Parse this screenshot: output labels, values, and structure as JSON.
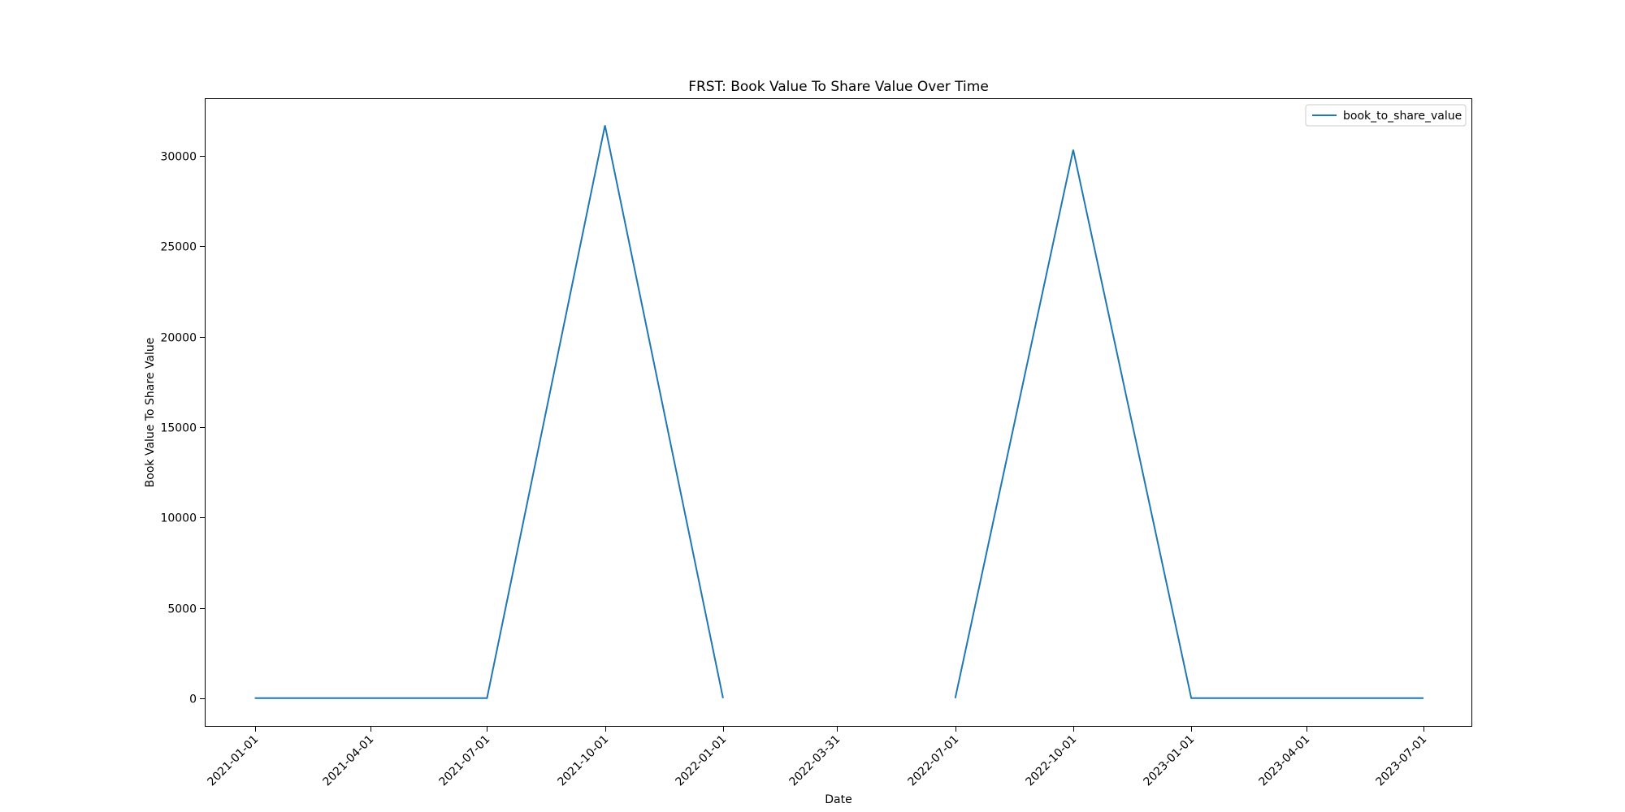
{
  "chart_data": {
    "type": "line",
    "title": "FRST: Book Value To Share Value Over Time",
    "xlabel": "Date",
    "ylabel": "Book Value To Share Value",
    "x_ticks": [
      "2021-01-01",
      "2021-04-01",
      "2021-07-01",
      "2021-10-01",
      "2022-01-01",
      "2022-03-31",
      "2022-07-01",
      "2022-10-01",
      "2023-01-01",
      "2023-04-01",
      "2023-07-01"
    ],
    "y_ticks": [
      0,
      5000,
      10000,
      15000,
      20000,
      25000,
      30000
    ],
    "ylim": [
      -1580,
      33200
    ],
    "xlim": [
      "2020-11-23",
      "2023-08-08"
    ],
    "legend": {
      "position": "top-right"
    },
    "grid": false,
    "series": [
      {
        "name": "book_to_share_value",
        "color": "#1f77b4",
        "points": [
          {
            "x": "2021-01-01",
            "y": 0
          },
          {
            "x": "2021-04-01",
            "y": 0
          },
          {
            "x": "2021-07-01",
            "y": 0
          },
          {
            "x": "2021-10-01",
            "y": 31700
          },
          {
            "x": "2022-01-01",
            "y": 0
          },
          {
            "x": "2022-03-31",
            "y": null
          },
          {
            "x": "2022-07-01",
            "y": 0
          },
          {
            "x": "2022-10-01",
            "y": 30350
          },
          {
            "x": "2023-01-01",
            "y": 0
          },
          {
            "x": "2023-04-01",
            "y": 0
          },
          {
            "x": "2023-07-01",
            "y": 0
          }
        ]
      }
    ]
  }
}
